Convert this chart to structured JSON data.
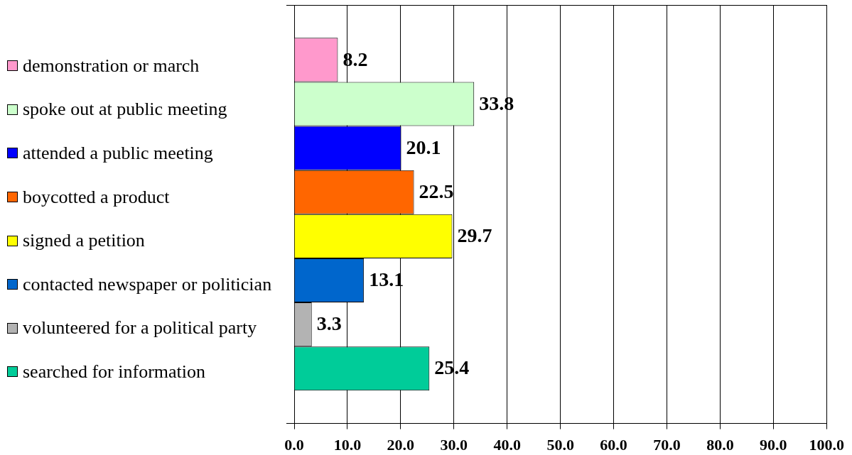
{
  "chart_data": {
    "type": "bar",
    "orientation": "horizontal",
    "categories": [
      null
    ],
    "series": [
      {
        "name": "demonstration or march",
        "color": "#ff99cc",
        "values": [
          8.2
        ]
      },
      {
        "name": "spoke out at public meeting",
        "color": "#ccffcc",
        "values": [
          33.8
        ]
      },
      {
        "name": "attended a public meeting",
        "color": "#0000ff",
        "values": [
          20.1
        ]
      },
      {
        "name": "boycotted a product",
        "color": "#ff6600",
        "values": [
          22.5
        ]
      },
      {
        "name": "signed a petition",
        "color": "#ffff00",
        "values": [
          29.7
        ]
      },
      {
        "name": "contacted newspaper or politician",
        "color": "#0066cc",
        "values": [
          13.1
        ]
      },
      {
        "name": "volunteered for a political party",
        "color": "#b3b3b3",
        "values": [
          3.3
        ]
      },
      {
        "name": "searched for information",
        "color": "#00cc99",
        "values": [
          25.4
        ]
      }
    ],
    "xlim": [
      0,
      100
    ],
    "xticks": [
      {
        "value": 0,
        "label": "0.0"
      },
      {
        "value": 10,
        "label": "10.0"
      },
      {
        "value": 20,
        "label": "20.0"
      },
      {
        "value": 30,
        "label": "30.0"
      },
      {
        "value": 40,
        "label": "40.0"
      },
      {
        "value": 50,
        "label": "50.0"
      },
      {
        "value": 60,
        "label": "60.0"
      },
      {
        "value": 70,
        "label": "70.0"
      },
      {
        "value": 80,
        "label": "80.0"
      },
      {
        "value": 90,
        "label": "90.0"
      },
      {
        "value": 100,
        "label": "100.0"
      }
    ],
    "grid": "x",
    "legend": "left",
    "data_labels": true
  }
}
